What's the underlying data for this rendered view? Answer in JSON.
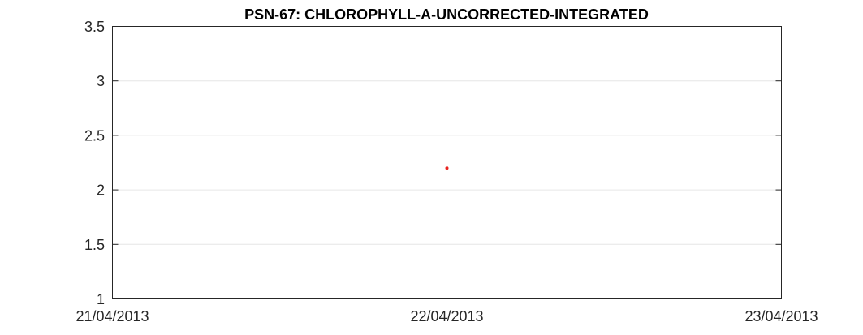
{
  "chart_data": {
    "type": "scatter",
    "title": "PSN-67: CHLOROPHYLL-A-UNCORRECTED-INTEGRATED",
    "xlabel": "",
    "ylabel": "",
    "x_ticks": [
      "21/04/2013",
      "22/04/2013",
      "23/04/2013"
    ],
    "xlim": [
      "21/04/2013",
      "23/04/2013"
    ],
    "ylim": [
      1,
      3.5
    ],
    "y_ticks": [
      "1",
      "1.5",
      "2",
      "2.5",
      "3",
      "3.5"
    ],
    "grid": true,
    "series": [
      {
        "color": "#e8231f",
        "points": [
          {
            "x": "22/04/2013",
            "y": 2.2
          }
        ]
      }
    ]
  }
}
